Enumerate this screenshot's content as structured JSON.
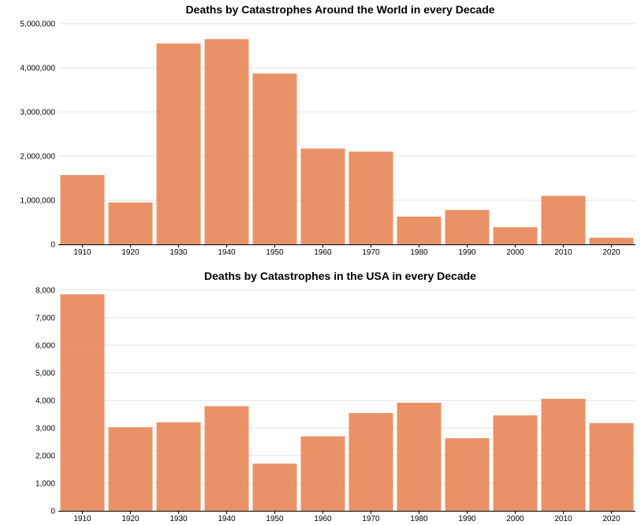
{
  "chart_data": [
    {
      "type": "bar",
      "title": "Deaths by Catastrophes Around the World in every Decade",
      "xlabel": "",
      "ylabel": "",
      "categories": [
        "1910",
        "1920",
        "1930",
        "1940",
        "1950",
        "1960",
        "1970",
        "1980",
        "1990",
        "2000",
        "2010",
        "2020"
      ],
      "values": [
        1570000,
        950000,
        4550000,
        4650000,
        3870000,
        2170000,
        2100000,
        630000,
        780000,
        390000,
        1100000,
        150000
      ],
      "ylim": [
        0,
        5000000
      ],
      "yticks": [
        0,
        1000000,
        2000000,
        3000000,
        4000000,
        5000000
      ],
      "ytick_labels": [
        "0",
        "1,000,000",
        "2,000,000",
        "3,000,000",
        "4,000,000",
        "5,000,000"
      ],
      "grid": true,
      "bar_color": "#e8895a"
    },
    {
      "type": "bar",
      "title": "Deaths by Catastrophes in the USA in every Decade",
      "xlabel": "",
      "ylabel": "",
      "categories": [
        "1910",
        "1920",
        "1930",
        "1940",
        "1950",
        "1960",
        "1970",
        "1980",
        "1990",
        "2000",
        "2010",
        "2020"
      ],
      "values": [
        7850,
        3030,
        3210,
        3790,
        1710,
        2700,
        3540,
        3920,
        2630,
        3460,
        4060,
        3180
      ],
      "ylim": [
        0,
        8000
      ],
      "yticks": [
        0,
        1000,
        2000,
        3000,
        4000,
        5000,
        6000,
        7000,
        8000
      ],
      "ytick_labels": [
        "0",
        "1,000",
        "2,000",
        "3,000",
        "4,000",
        "5,000",
        "6,000",
        "7,000",
        "8,000"
      ],
      "grid": true,
      "bar_color": "#e8895a"
    }
  ]
}
